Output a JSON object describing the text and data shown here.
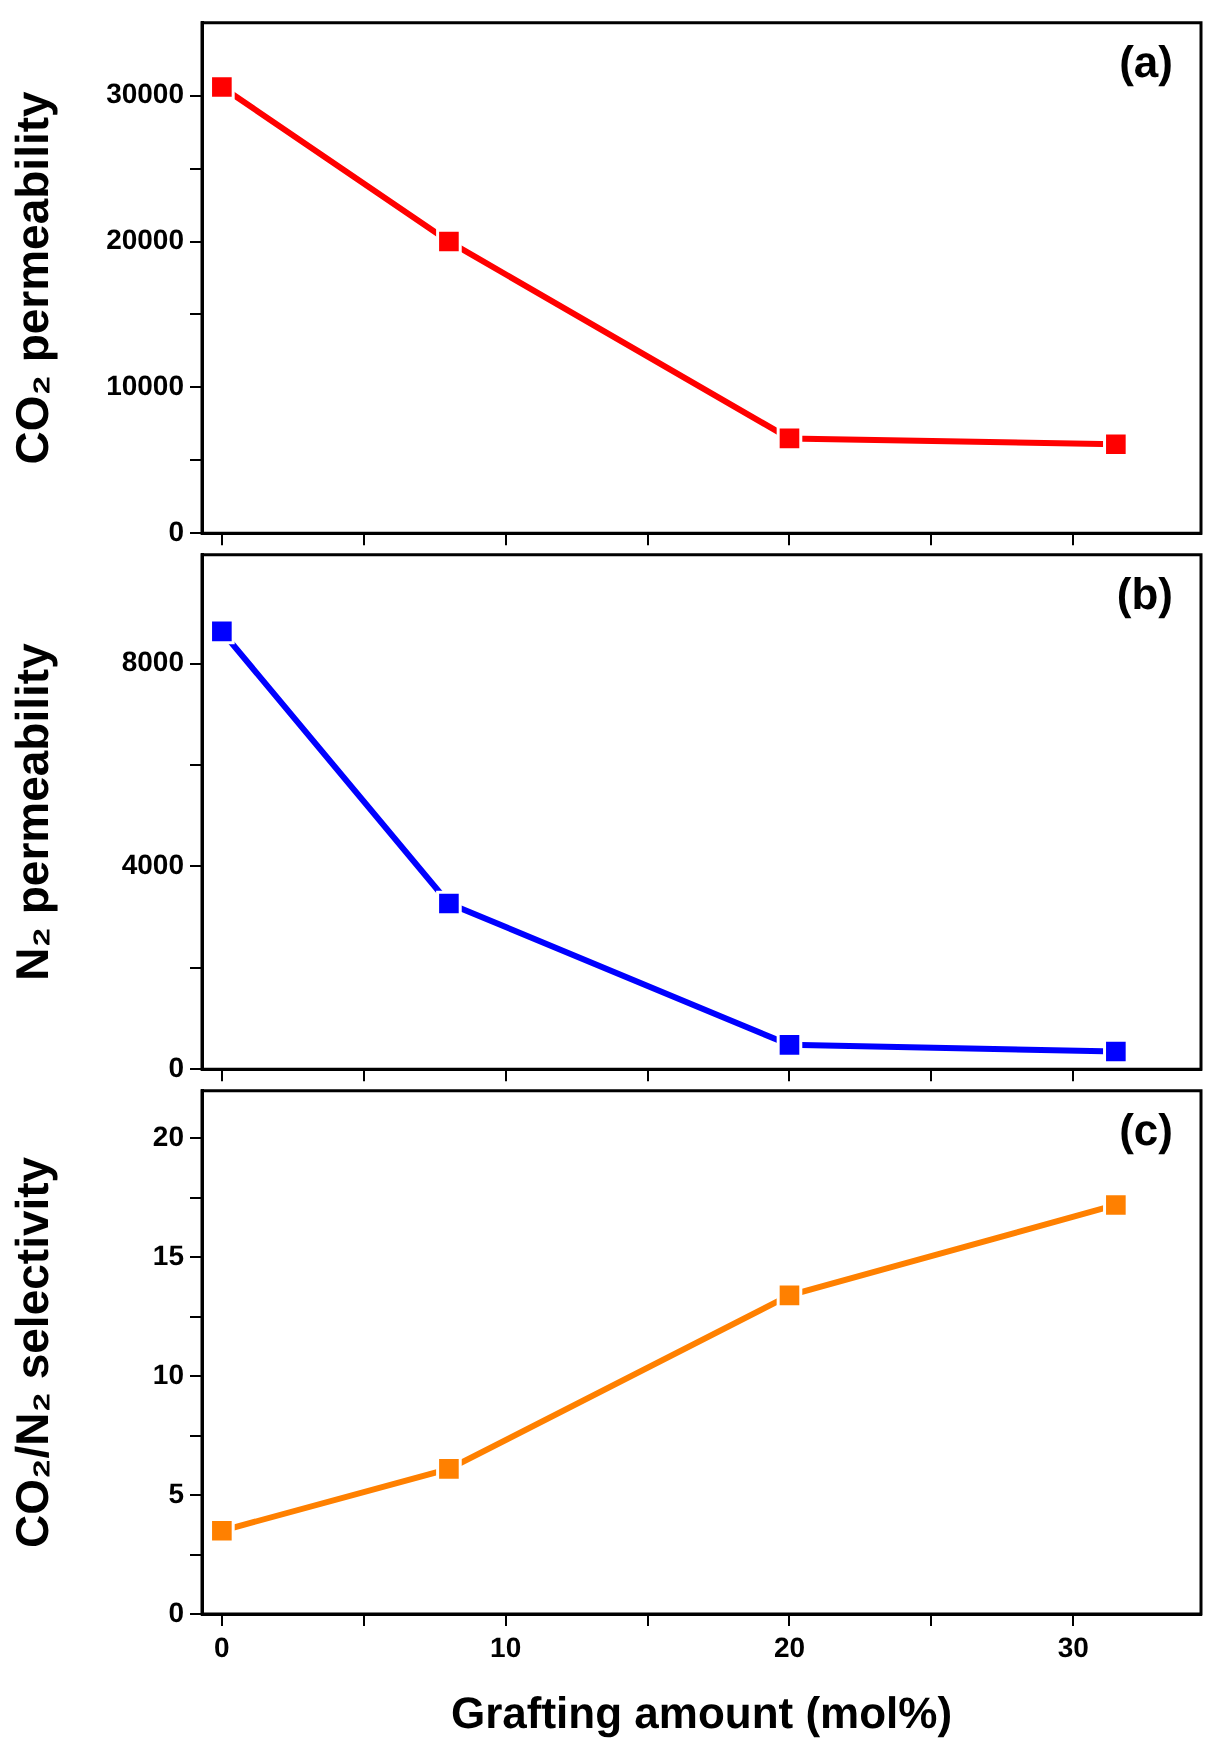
{
  "chart_data": [
    {
      "type": "line",
      "x": [
        0,
        8,
        20,
        31.5
      ],
      "xlim": [
        -0.7,
        34.5
      ],
      "xticks": [
        0,
        {
          "value": 5,
          "label": null
        },
        10,
        {
          "value": 15,
          "label": null
        },
        20,
        {
          "value": 25,
          "label": null
        },
        30
      ],
      "tick_labels": "y",
      "ylabel": "CO₂ permeability",
      "ylim": [
        0,
        35000
      ],
      "yticks": [
        0,
        {
          "value": 5000,
          "label": null
        },
        10000,
        {
          "value": 15000,
          "label": null
        },
        20000,
        {
          "value": 25000,
          "label": null
        },
        30000
      ],
      "marker": "square",
      "legend": false,
      "annotations": [
        "(a)"
      ],
      "series": [
        {
          "color": "#ff0000",
          "values": [
            30600,
            20000,
            6500,
            6100
          ]
        }
      ]
    },
    {
      "type": "line",
      "x": [
        0,
        8,
        20,
        31.5
      ],
      "xlim": [
        -0.7,
        34.5
      ],
      "xticks": [
        0,
        {
          "value": 5,
          "label": null
        },
        10,
        {
          "value": 15,
          "label": null
        },
        20,
        {
          "value": 25,
          "label": null
        },
        30
      ],
      "tick_labels": "y",
      "ylabel": "N₂ permeability",
      "ylim": [
        0,
        10150
      ],
      "yticks": [
        0,
        {
          "value": 2000,
          "label": null
        },
        4000,
        {
          "value": 6000,
          "label": null
        },
        8000
      ],
      "marker": "square",
      "legend": false,
      "annotations": [
        "(b)"
      ],
      "series": [
        {
          "color": "#0000ff",
          "values": [
            8640,
            3270,
            480,
            350
          ]
        }
      ]
    },
    {
      "type": "line",
      "x": [
        0,
        8,
        20,
        31.5
      ],
      "xlim": [
        -0.7,
        34.5
      ],
      "xticks": [
        0,
        {
          "value": 5,
          "label": null
        },
        10,
        {
          "value": 15,
          "label": null
        },
        20,
        {
          "value": 25,
          "label": null
        },
        30
      ],
      "xlabel": "Grafting amount (mol%)",
      "ylabel": "CO₂/N₂ selectivity",
      "ylim": [
        0,
        22
      ],
      "yticks": [
        0,
        {
          "value": 2.5,
          "label": null
        },
        5,
        {
          "value": 7.5,
          "label": null
        },
        10,
        {
          "value": 12.5,
          "label": null
        },
        15,
        {
          "value": 17.5,
          "label": null
        },
        20
      ],
      "marker": "square",
      "legend": false,
      "annotations": [
        "(c)"
      ],
      "series": [
        {
          "color": "#ff8000",
          "values": [
            3.5,
            6.1,
            13.4,
            17.2
          ]
        }
      ]
    }
  ]
}
